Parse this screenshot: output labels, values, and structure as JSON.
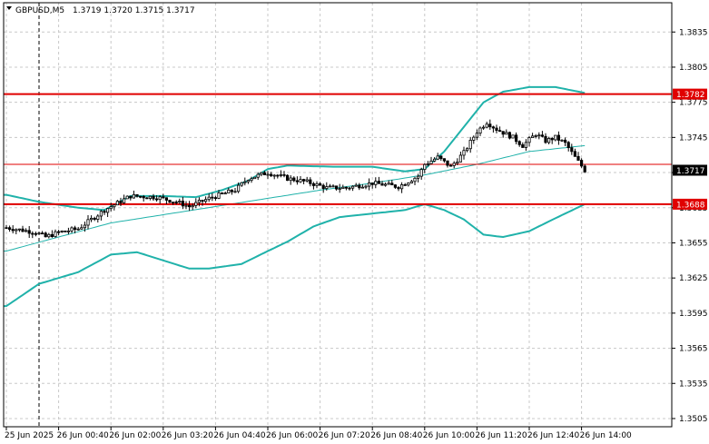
{
  "header": {
    "symbol": "GBPUSD,M5",
    "ohlc": "1.3719 1.3720 1.3715 1.3717"
  },
  "colors": {
    "background": "#ffffff",
    "grid": "#c8c8c8",
    "axis": "#000000",
    "candle": "#000000",
    "bollinger": "#20b2aa",
    "moving_average": "#20b2aa",
    "level_line": "#e00000",
    "price_tag": "#000000",
    "level_tag": "#e00000"
  },
  "chart_data": {
    "type": "candlestick",
    "title": "GBPUSD,M5",
    "ylim": [
      1.3498,
      1.386
    ],
    "y_ticks": [
      "1.3835",
      "1.3805",
      "1.3775",
      "1.3745",
      "1.3715",
      "1.3685",
      "1.3655",
      "1.3625",
      "1.3595",
      "1.3565",
      "1.3535",
      "1.3505"
    ],
    "x_ticks": [
      "25 Jun 2025",
      "26 Jun 00:40",
      "26 Jun 02:00",
      "26 Jun 03:20",
      "26 Jun 04:40",
      "26 Jun 06:00",
      "26 Jun 07:20",
      "26 Jun 08:40",
      "26 Jun 10:00",
      "26 Jun 11:20",
      "26 Jun 12:40",
      "26 Jun 14:00"
    ],
    "x_tick_index": [
      0,
      16,
      32,
      48,
      64,
      80,
      96,
      112,
      128,
      144,
      160,
      176
    ],
    "bar_count": 178,
    "period_separator_index": 10,
    "close_anchors": [
      [
        0,
        1.3668
      ],
      [
        9,
        1.3664
      ],
      [
        12,
        1.366
      ],
      [
        16,
        1.3664
      ],
      [
        22,
        1.3667
      ],
      [
        30,
        1.3683
      ],
      [
        38,
        1.3695
      ],
      [
        46,
        1.3694
      ],
      [
        52,
        1.369
      ],
      [
        56,
        1.3686
      ],
      [
        62,
        1.3693
      ],
      [
        70,
        1.37
      ],
      [
        74,
        1.371
      ],
      [
        80,
        1.3715
      ],
      [
        86,
        1.371
      ],
      [
        92,
        1.3707
      ],
      [
        98,
        1.3702
      ],
      [
        104,
        1.3702
      ],
      [
        112,
        1.3706
      ],
      [
        120,
        1.3703
      ],
      [
        126,
        1.3712
      ],
      [
        128,
        1.3722
      ],
      [
        132,
        1.3728
      ],
      [
        136,
        1.372
      ],
      [
        140,
        1.3732
      ],
      [
        144,
        1.375
      ],
      [
        147,
        1.3758
      ],
      [
        150,
        1.3752
      ],
      [
        155,
        1.3745
      ],
      [
        158,
        1.3738
      ],
      [
        162,
        1.3748
      ],
      [
        165,
        1.3742
      ],
      [
        168,
        1.3745
      ],
      [
        171,
        1.374
      ],
      [
        174,
        1.3728
      ],
      [
        177,
        1.3717
      ]
    ],
    "bollinger_upper": [
      [
        0,
        1.3696
      ],
      [
        10,
        1.369
      ],
      [
        22,
        1.3685
      ],
      [
        30,
        1.3683
      ],
      [
        38,
        1.3695
      ],
      [
        48,
        1.3695
      ],
      [
        58,
        1.3694
      ],
      [
        66,
        1.37
      ],
      [
        74,
        1.3708
      ],
      [
        80,
        1.3718
      ],
      [
        86,
        1.3721
      ],
      [
        100,
        1.372
      ],
      [
        112,
        1.372
      ],
      [
        122,
        1.3716
      ],
      [
        128,
        1.3718
      ],
      [
        134,
        1.3733
      ],
      [
        140,
        1.3754
      ],
      [
        146,
        1.3775
      ],
      [
        152,
        1.3784
      ],
      [
        160,
        1.3788
      ],
      [
        168,
        1.3788
      ],
      [
        177,
        1.3783
      ]
    ],
    "bollinger_lower": [
      [
        0,
        1.3601
      ],
      [
        10,
        1.362
      ],
      [
        22,
        1.363
      ],
      [
        32,
        1.3645
      ],
      [
        40,
        1.3647
      ],
      [
        48,
        1.364
      ],
      [
        56,
        1.3633
      ],
      [
        62,
        1.3633
      ],
      [
        72,
        1.3637
      ],
      [
        80,
        1.3648
      ],
      [
        86,
        1.3656
      ],
      [
        94,
        1.3669
      ],
      [
        102,
        1.3677
      ],
      [
        112,
        1.368
      ],
      [
        122,
        1.3683
      ],
      [
        128,
        1.3688
      ],
      [
        134,
        1.3683
      ],
      [
        140,
        1.3675
      ],
      [
        146,
        1.3662
      ],
      [
        152,
        1.366
      ],
      [
        160,
        1.3665
      ],
      [
        168,
        1.3676
      ],
      [
        177,
        1.3688
      ]
    ],
    "moving_average": [
      [
        0,
        1.3648
      ],
      [
        16,
        1.366
      ],
      [
        32,
        1.3672
      ],
      [
        48,
        1.3679
      ],
      [
        64,
        1.3686
      ],
      [
        80,
        1.3693
      ],
      [
        96,
        1.37
      ],
      [
        112,
        1.3706
      ],
      [
        128,
        1.3713
      ],
      [
        144,
        1.3722
      ],
      [
        160,
        1.3733
      ],
      [
        177,
        1.3738
      ]
    ],
    "horizontal_levels": [
      {
        "price": 1.3782,
        "label": "1.3782",
        "weight": "thick"
      },
      {
        "price": 1.3688,
        "label": "1.3688",
        "weight": "thick"
      },
      {
        "price": 1.3722,
        "label": "",
        "weight": "thin"
      }
    ],
    "current_price": {
      "price": 1.3717,
      "label": "1.3717"
    }
  }
}
